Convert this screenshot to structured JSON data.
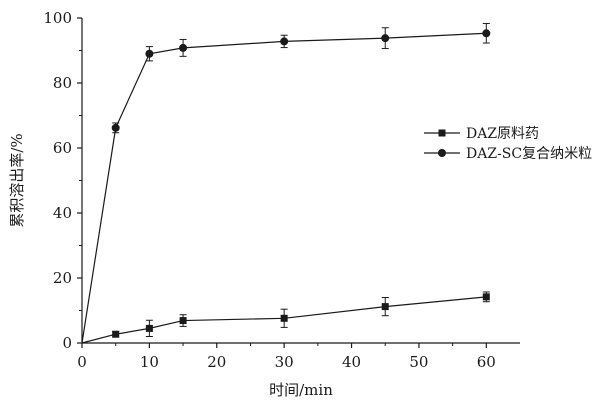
{
  "chart_data": {
    "type": "line",
    "title": "",
    "xlabel": "时间/min",
    "ylabel": "累积溶出率/%",
    "xlim": [
      0,
      65
    ],
    "ylim": [
      0,
      100
    ],
    "xticks": [
      0,
      10,
      20,
      30,
      40,
      50,
      60
    ],
    "yticks": [
      0,
      20,
      40,
      60,
      80,
      100
    ],
    "grid": false,
    "legend_position": "right-middle",
    "series": [
      {
        "name": "DAZ原料药",
        "marker": "square",
        "color": "#1a1a1a",
        "points": [
          {
            "x": 0,
            "y": 0,
            "err": 0
          },
          {
            "x": 5,
            "y": 2.7,
            "err": 0.8
          },
          {
            "x": 10,
            "y": 4.5,
            "err": 2.5
          },
          {
            "x": 15,
            "y": 6.9,
            "err": 1.8
          },
          {
            "x": 30,
            "y": 7.6,
            "err": 2.8
          },
          {
            "x": 45,
            "y": 11.2,
            "err": 2.8
          },
          {
            "x": 60,
            "y": 14.2,
            "err": 1.5
          }
        ]
      },
      {
        "name": "DAZ-SC复合纳米粒",
        "marker": "circle",
        "color": "#1a1a1a",
        "points": [
          {
            "x": 0,
            "y": 0,
            "err": 0
          },
          {
            "x": 5,
            "y": 66.2,
            "err": 1.5
          },
          {
            "x": 10,
            "y": 89.0,
            "err": 2.2
          },
          {
            "x": 15,
            "y": 90.8,
            "err": 2.6
          },
          {
            "x": 30,
            "y": 92.8,
            "err": 1.9
          },
          {
            "x": 45,
            "y": 93.8,
            "err": 3.2
          },
          {
            "x": 60,
            "y": 95.3,
            "err": 3.0
          }
        ]
      }
    ]
  }
}
